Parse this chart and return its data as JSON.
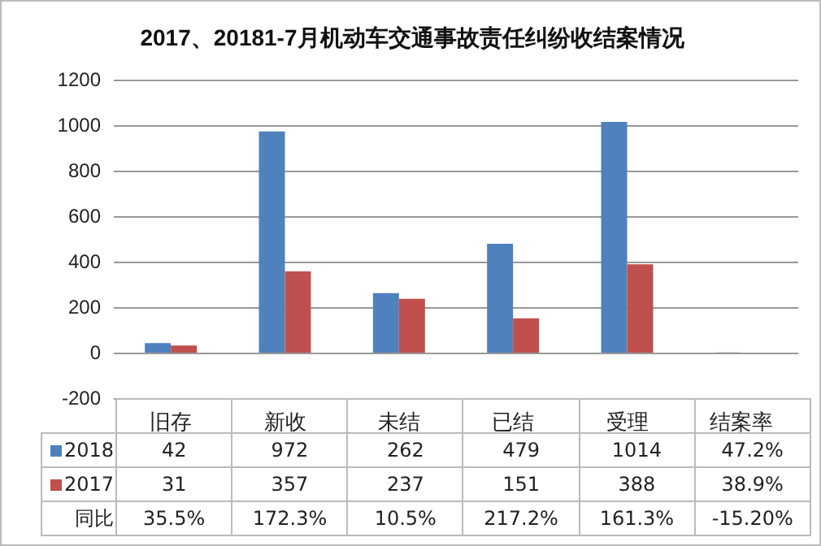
{
  "chart_data": {
    "type": "bar",
    "title": "2017、20181-7月机动车交通事故责任纠纷收结案情况",
    "categories": [
      "旧存",
      "新收",
      "未结",
      "已结",
      "受理",
      "结案率"
    ],
    "series": [
      {
        "name": "2018",
        "color": "#4f81bd",
        "values": [
          42,
          972,
          262,
          479,
          1014,
          0.472
        ],
        "value_labels": [
          "42",
          "972",
          "262",
          "479",
          "1014",
          "47.2%"
        ]
      },
      {
        "name": "2017",
        "color": "#c0504d",
        "values": [
          31,
          357,
          237,
          151,
          388,
          0.389
        ],
        "value_labels": [
          "31",
          "357",
          "237",
          "151",
          "388",
          "38.9%"
        ]
      }
    ],
    "annotations": [
      "同比",
      "35.5%",
      "172.3%",
      "10.5%",
      "217.2%",
      "161.3%",
      "-15.20%"
    ],
    "ylim": [
      -200,
      1200
    ],
    "yticks": [
      -200,
      0,
      200,
      400,
      600,
      800,
      1000,
      1200
    ],
    "grid": "y",
    "legend": "bottom"
  }
}
